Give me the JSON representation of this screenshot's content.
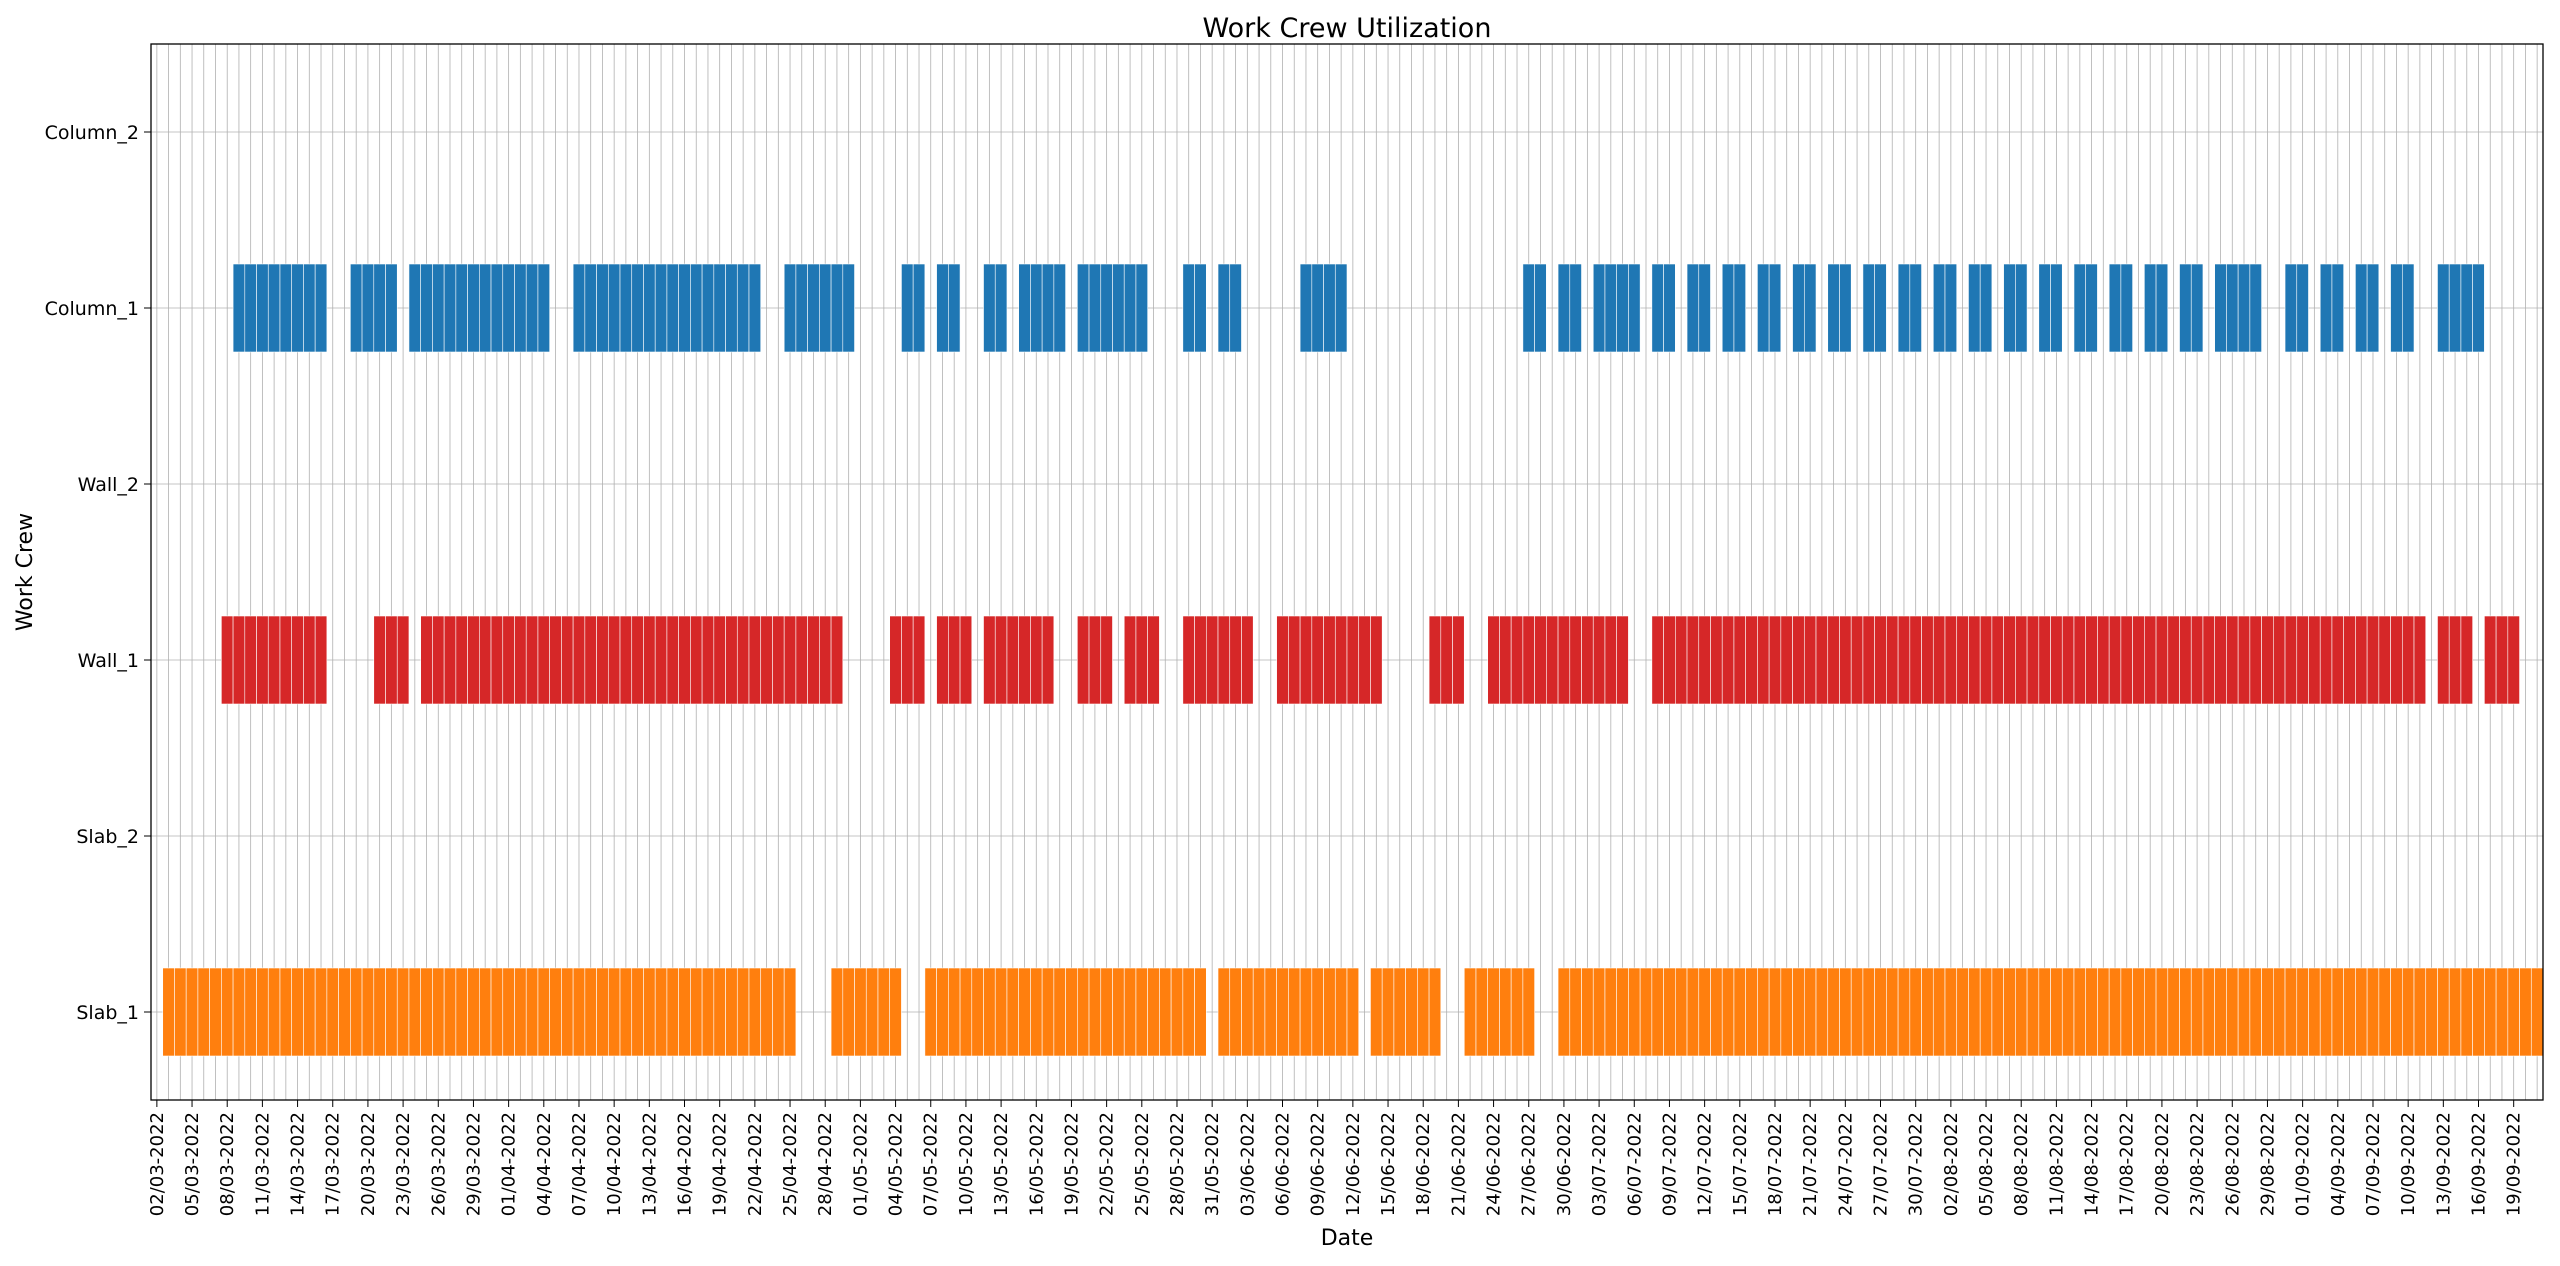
{
  "chart_data": {
    "type": "bar",
    "subtype": "timeline-gantt",
    "title": "Work Crew Utilization",
    "xlabel": "Date",
    "ylabel": "Work Crew",
    "xlim": [
      "02/03/2022",
      "22/09/2022"
    ],
    "grid": true,
    "legend": "none",
    "x_tick_labels": [
      "02/03-2022",
      "05/03-2022",
      "08/03-2022",
      "11/03-2022",
      "14/03-2022",
      "17/03-2022",
      "20/03-2022",
      "23/03-2022",
      "26/03-2022",
      "29/03-2022",
      "01/04-2022",
      "04/04-2022",
      "07/04-2022",
      "10/04-2022",
      "13/04-2022",
      "16/04-2022",
      "19/04-2022",
      "22/04-2022",
      "25/04-2022",
      "28/04-2022",
      "01/05-2022",
      "04/05-2022",
      "07/05-2022",
      "10/05-2022",
      "13/05-2022",
      "16/05-2022",
      "19/05-2022",
      "22/05-2022",
      "25/05-2022",
      "28/05-2022",
      "31/05-2022",
      "03/06-2022",
      "06/06-2022",
      "09/06-2022",
      "12/06-2022",
      "15/06-2022",
      "18/06-2022",
      "21/06-2022",
      "24/06-2022",
      "27/06-2022",
      "30/06-2022",
      "03/07-2022",
      "06/07-2022",
      "09/07-2022",
      "12/07-2022",
      "15/07-2022",
      "18/07-2022",
      "21/07-2022",
      "24/07-2022",
      "27/07-2022",
      "30/07-2022",
      "02/08-2022",
      "05/08-2022",
      "08/08-2022",
      "11/08-2022",
      "14/08-2022",
      "17/08-2022",
      "20/08-2022",
      "23/08-2022",
      "26/08-2022",
      "29/08-2022",
      "01/09-2022",
      "04/09-2022",
      "07/09-2022",
      "10/09-2022",
      "13/09-2022",
      "16/09-2022",
      "19/09-2022"
    ],
    "categories": [
      "Slab_1",
      "Slab_2",
      "Wall_1",
      "Wall_2",
      "Column_1",
      "Column_2"
    ],
    "series": [
      {
        "category": "Slab_1",
        "color": "#ff7f0e",
        "segments": [
          [
            "03/03/2022",
            "25/04/2022"
          ],
          [
            "29/04/2022",
            "04/05/2022"
          ],
          [
            "07/05/2022",
            "30/05/2022"
          ],
          [
            "01/06/2022",
            "12/06-2022"
          ],
          [
            "14/06/2022",
            "19/06/2022"
          ],
          [
            "22/06/2022",
            "27/06/2022"
          ],
          [
            "30/06/2022",
            "21/09/2022"
          ]
        ]
      },
      {
        "category": "Slab_2",
        "color": "#ff7f0e",
        "segments": []
      },
      {
        "category": "Wall_1",
        "color": "#d62728",
        "segments": [
          [
            "08/03/2022",
            "16/03/2022"
          ],
          [
            "21/03/2022",
            "23/03/2022"
          ],
          [
            "25/03/2022",
            "29/04/2022"
          ],
          [
            "04/05/2022",
            "06/05/2022"
          ],
          [
            "08/05/2022",
            "10/05/2022"
          ],
          [
            "12/05/2022",
            "17/05/2022"
          ],
          [
            "20/05/2022",
            "22/05/2022"
          ],
          [
            "24/05/2022",
            "26/05/2022"
          ],
          [
            "29/05/2022",
            "03/06/2022"
          ],
          [
            "06/06/2022",
            "14/06/2022"
          ],
          [
            "19/06/2022",
            "21/06/2022"
          ],
          [
            "24/06/2022",
            "05/07/2022"
          ],
          [
            "08/07/2022",
            "11/09/2022"
          ],
          [
            "13/09/2022",
            "15/09/2022"
          ],
          [
            "17/09/2022",
            "19/09/2022"
          ]
        ]
      },
      {
        "category": "Wall_2",
        "color": "#d62728",
        "segments": []
      },
      {
        "category": "Column_1",
        "color": "#1f77b4",
        "segments": [
          [
            "09/03/2022",
            "16/03/2022"
          ],
          [
            "19/03/2022",
            "22/03/2022"
          ],
          [
            "24/03/2022",
            "04/04/2022"
          ],
          [
            "07/04/2022",
            "22/04/2022"
          ],
          [
            "25/04/2022",
            "30/04/2022"
          ],
          [
            "05/05/2022",
            "06/05/2022"
          ],
          [
            "08/05/2022",
            "09/05/2022"
          ],
          [
            "12/05/2022",
            "13/05/2022"
          ],
          [
            "15/05/2022",
            "18/05/2022"
          ],
          [
            "20/05/2022",
            "25/05/2022"
          ],
          [
            "29/05/2022",
            "30/05/2022"
          ],
          [
            "01/06/2022",
            "02/06/2022"
          ],
          [
            "08/06/2022",
            "11/06/2022"
          ],
          [
            "27/06/2022",
            "28/06/2022"
          ],
          [
            "30/06/2022",
            "01/07/2022"
          ],
          [
            "03/07/2022",
            "06/07/2022"
          ],
          [
            "08/07/2022",
            "09/07/2022"
          ],
          [
            "11/07/2022",
            "12/07/2022"
          ],
          [
            "14/07/2022",
            "15/07/2022"
          ],
          [
            "17/07/2022",
            "18/07/2022"
          ],
          [
            "20/07/2022",
            "21/07/2022"
          ],
          [
            "23/07/2022",
            "24/07/2022"
          ],
          [
            "26/07/2022",
            "27/07/2022"
          ],
          [
            "29/07/2022",
            "30/07/2022"
          ],
          [
            "01/08/2022",
            "02/08/2022"
          ],
          [
            "04/08/2022",
            "05/08/2022"
          ],
          [
            "07/08/2022",
            "08/08/2022"
          ],
          [
            "10/08/2022",
            "11/08/2022"
          ],
          [
            "13/08/2022",
            "14/08/2022"
          ],
          [
            "16/08/2022",
            "17/08/2022"
          ],
          [
            "19/08/2022",
            "20/08/2022"
          ],
          [
            "22/08/2022",
            "23/08/2022"
          ],
          [
            "25/08/2022",
            "28/08/2022"
          ],
          [
            "31/08/2022",
            "01/09/2022"
          ],
          [
            "03/09/2022",
            "04/09/2022"
          ],
          [
            "06/09/2022",
            "07/09/2022"
          ],
          [
            "09/09/2022",
            "10/09/2022"
          ],
          [
            "13/09/2022",
            "16/09/2022"
          ]
        ]
      },
      {
        "category": "Column_2",
        "color": "#1f77b4",
        "segments": []
      }
    ]
  }
}
